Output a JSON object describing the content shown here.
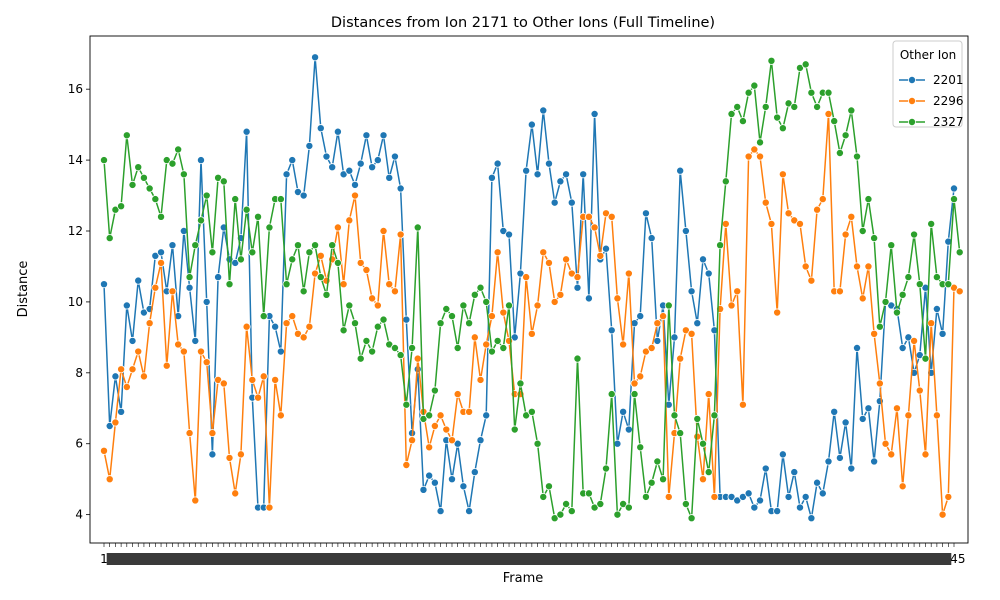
{
  "chart_data": {
    "type": "line",
    "title": "Distances from Ion 2171 to Other Ions (Full Timeline)",
    "xlabel": "Frame",
    "ylabel": "Distance",
    "ylim": [
      3.2,
      17.5
    ],
    "yticks": [
      4,
      6,
      8,
      10,
      12,
      14,
      16
    ],
    "grid": false,
    "legend": {
      "title": "Other Ion",
      "position": "top-right"
    },
    "x_tick_labels_visible": [
      "1",
      "145"
    ],
    "series": [
      {
        "name": "2201",
        "color": "#1f77b4",
        "values": [
          10.5,
          6.5,
          7.9,
          6.9,
          9.9,
          8.9,
          10.6,
          9.7,
          9.8,
          11.3,
          11.4,
          10.3,
          11.6,
          9.6,
          12.0,
          10.4,
          8.9,
          14.0,
          10.0,
          5.7,
          10.7,
          12.1,
          11.2,
          11.1,
          11.8,
          14.8,
          7.3,
          4.2,
          4.2,
          9.6,
          9.3,
          8.6,
          13.6,
          14.0,
          13.1,
          13.0,
          14.4,
          16.9,
          14.9,
          14.1,
          13.8,
          14.8,
          13.6,
          13.7,
          13.3,
          13.9,
          14.7,
          13.8,
          14.0,
          14.7,
          13.5,
          14.1,
          13.2,
          9.5,
          6.3,
          8.1,
          4.7,
          5.1,
          4.9,
          4.1,
          6.1,
          5.0,
          6.0,
          4.8,
          4.1,
          5.2,
          6.1,
          6.8,
          13.5,
          13.9,
          12.0,
          11.9,
          9.0,
          10.8,
          13.7,
          15.0,
          13.6,
          15.4,
          13.9,
          12.8,
          13.4,
          13.6,
          12.8,
          10.4,
          13.6,
          10.1,
          15.3,
          11.2,
          11.5,
          9.2,
          6.0,
          6.9,
          6.4,
          9.4,
          9.6,
          12.5,
          11.8,
          8.9,
          9.9,
          7.1,
          9.0,
          13.7,
          12.0,
          10.3,
          9.4,
          11.2,
          10.8,
          9.2,
          4.5,
          4.5,
          4.5,
          4.4,
          4.5,
          4.6,
          4.2,
          4.4,
          5.3,
          4.1,
          4.1,
          5.7,
          4.5,
          5.2,
          4.2,
          4.5,
          3.9,
          4.9,
          4.6,
          5.5,
          6.9,
          5.6,
          6.6,
          5.3,
          8.7,
          6.7,
          7.0,
          5.5,
          7.2,
          10.0,
          9.9,
          9.8,
          8.7,
          9.0,
          8.0,
          8.5,
          10.4,
          8.0,
          9.8,
          9.1,
          11.7,
          13.2
        ]
      },
      {
        "name": "2296",
        "color": "#ff7f0e",
        "values": [
          5.8,
          5.0,
          6.6,
          8.1,
          7.6,
          8.1,
          8.6,
          7.9,
          9.4,
          10.4,
          11.1,
          8.2,
          10.3,
          8.8,
          8.6,
          6.3,
          4.4,
          8.6,
          8.3,
          6.3,
          7.8,
          7.7,
          5.6,
          4.6,
          5.7,
          9.3,
          7.8,
          7.3,
          7.9,
          4.2,
          7.8,
          6.8,
          9.4,
          9.6,
          9.1,
          9.0,
          9.3,
          10.8,
          11.3,
          10.6,
          11.2,
          12.1,
          10.5,
          12.3,
          13.0,
          11.1,
          10.9,
          10.1,
          9.9,
          12.0,
          10.5,
          10.3,
          11.9,
          5.4,
          6.1,
          8.4,
          6.9,
          5.9,
          6.5,
          6.8,
          6.4,
          6.1,
          7.4,
          6.9,
          6.9,
          9.0,
          7.8,
          8.8,
          9.6,
          11.4,
          9.7,
          8.9,
          7.4,
          7.4,
          10.7,
          9.1,
          9.9,
          11.4,
          11.1,
          10.0,
          10.2,
          11.2,
          10.8,
          10.7,
          12.4,
          12.4,
          12.1,
          11.3,
          12.5,
          12.4,
          10.1,
          8.8,
          10.8,
          7.7,
          7.9,
          8.6,
          8.7,
          9.4,
          9.6,
          4.5,
          6.3,
          8.4,
          9.2,
          9.1,
          6.2,
          5.0,
          7.4,
          4.5,
          9.8,
          12.2,
          9.9,
          10.3,
          7.1,
          14.1,
          14.3,
          14.1,
          12.8,
          12.2,
          9.7,
          13.6,
          12.5,
          12.3,
          12.2,
          11.0,
          10.6,
          12.6,
          12.9,
          15.3,
          10.3,
          10.3,
          11.9,
          12.4,
          11.0,
          10.1,
          11.0,
          9.1,
          7.7,
          6.0,
          5.7,
          7.0,
          4.8,
          6.8,
          8.9,
          7.5,
          5.7,
          9.4,
          6.8,
          4.0,
          4.5,
          10.4,
          10.3
        ]
      },
      {
        "name": "2327",
        "color": "#2ca02c",
        "values": [
          14.0,
          11.8,
          12.6,
          12.7,
          14.7,
          13.3,
          13.8,
          13.5,
          13.2,
          12.9,
          12.4,
          14.0,
          13.9,
          14.3,
          13.6,
          10.7,
          11.6,
          12.3,
          13.0,
          11.4,
          13.5,
          13.4,
          10.5,
          12.9,
          11.2,
          12.6,
          11.4,
          12.4,
          9.6,
          12.1,
          12.9,
          12.9,
          10.5,
          11.2,
          11.6,
          10.3,
          11.4,
          11.6,
          10.7,
          10.2,
          11.6,
          11.1,
          9.2,
          9.9,
          9.4,
          8.4,
          8.9,
          8.6,
          9.3,
          9.5,
          8.8,
          8.7,
          8.5,
          7.1,
          8.7,
          12.1,
          6.7,
          6.8,
          7.5,
          9.4,
          9.8,
          9.6,
          8.7,
          9.9,
          9.4,
          10.2,
          10.4,
          10.0,
          8.6,
          8.9,
          8.7,
          9.9,
          6.4,
          7.7,
          6.8,
          6.9,
          6.0,
          4.5,
          4.8,
          3.9,
          4.0,
          4.3,
          4.1,
          8.4,
          4.6,
          4.6,
          4.2,
          4.3,
          5.3,
          7.4,
          4.0,
          4.3,
          4.2,
          7.4,
          5.9,
          4.5,
          4.9,
          5.5,
          5.0,
          9.9,
          6.8,
          6.3,
          4.3,
          3.9,
          6.7,
          6.0,
          5.2,
          6.8,
          11.6,
          13.4,
          15.3,
          15.5,
          15.1,
          15.9,
          16.1,
          14.5,
          15.5,
          16.8,
          15.2,
          14.9,
          15.6,
          15.5,
          16.6,
          16.7,
          15.9,
          15.5,
          15.9,
          15.9,
          15.1,
          14.2,
          14.7,
          15.4,
          14.1,
          12.0,
          12.9,
          11.8,
          9.3,
          10.0,
          11.6,
          9.7,
          10.2,
          10.7,
          11.9,
          10.5,
          8.4,
          12.2,
          10.7,
          10.5,
          10.5,
          12.9,
          11.4
        ]
      }
    ]
  }
}
